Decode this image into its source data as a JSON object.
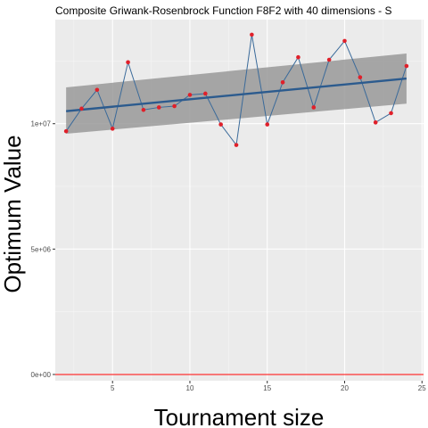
{
  "chart_data": {
    "type": "line",
    "title": "Composite Griwank-Rosenbrock Function F8F2 with 40 dimensions -  S",
    "xlabel": "Tournament size",
    "ylabel": "Optimum Value",
    "xlim": [
      1.3,
      25.1
    ],
    "ylim": [
      -250000,
      14150000
    ],
    "x_ticks": [
      {
        "value": 5,
        "label": "5"
      },
      {
        "value": 10,
        "label": "10"
      },
      {
        "value": 15,
        "label": "15"
      },
      {
        "value": 20,
        "label": "20"
      },
      {
        "value": 25,
        "label": "25"
      }
    ],
    "y_ticks": [
      {
        "value": 0,
        "label": "0e+00"
      },
      {
        "value": 5000000,
        "label": "5e+06"
      },
      {
        "value": 10000000,
        "label": "1e+07"
      }
    ],
    "grid": true,
    "series": [
      {
        "kind": "observed",
        "line_color": "#3a6a9a",
        "point_color": "#e0202a",
        "x": [
          2,
          3,
          4,
          5,
          6,
          7,
          8,
          9,
          10,
          11,
          12,
          13,
          14,
          15,
          16,
          17,
          18,
          19,
          20,
          21,
          22,
          23,
          24
        ],
        "y": [
          9700000,
          10600000,
          11350000,
          9800000,
          12450000,
          10550000,
          10650000,
          10700000,
          11150000,
          11200000,
          9970000,
          9150000,
          13550000,
          9970000,
          11650000,
          12650000,
          10650000,
          12550000,
          13300000,
          11850000,
          10050000,
          10420000,
          12300000
        ]
      },
      {
        "kind": "linear-fit",
        "line_color": "#2c5b8e",
        "band_color": "#999999",
        "x": [
          2,
          24
        ],
        "y": [
          10500000,
          11800000
        ],
        "ci_lower": [
          9600000,
          10800000
        ],
        "ci_upper": [
          11450000,
          12800000
        ]
      }
    ],
    "reference_line": {
      "y": 0,
      "color": "#ff0000"
    }
  }
}
